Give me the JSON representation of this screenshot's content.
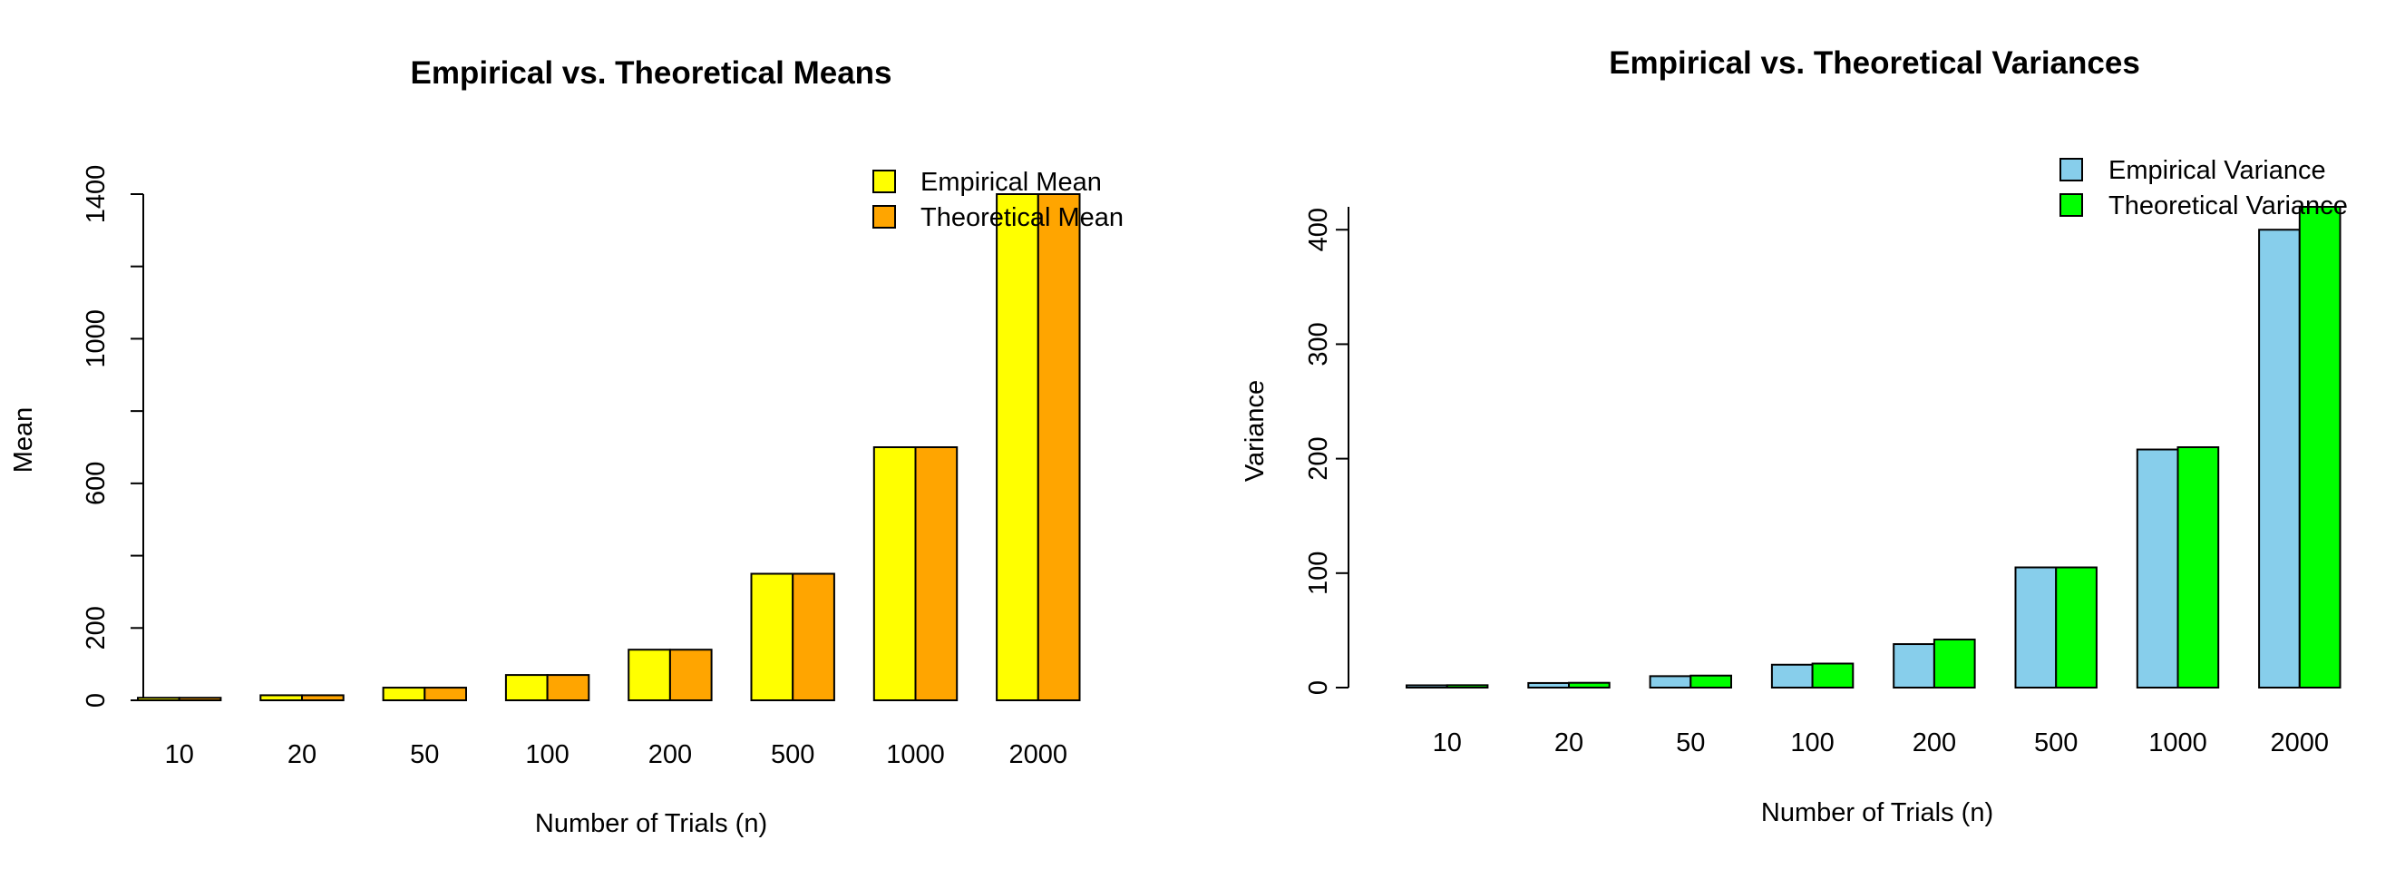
{
  "chart_data": [
    {
      "type": "bar",
      "title": "Empirical vs. Theoretical Means",
      "xlabel": "Number of Trials (n)",
      "ylabel": "Mean",
      "categories": [
        "10",
        "20",
        "50",
        "100",
        "200",
        "500",
        "1000",
        "2000"
      ],
      "series": [
        {
          "name": "Empirical Mean",
          "color": "#FFFF00",
          "values": [
            7,
            14,
            35,
            70,
            140,
            350,
            700,
            1400
          ]
        },
        {
          "name": "Theoretical Mean",
          "color": "#FFA500",
          "values": [
            7,
            14,
            35,
            70,
            140,
            350,
            700,
            1400
          ]
        }
      ],
      "ylim": [
        0,
        1400
      ],
      "yticks": [
        0,
        200,
        600,
        1000,
        1400
      ],
      "grid": false,
      "legend_position": "top-right"
    },
    {
      "type": "bar",
      "title": "Empirical vs. Theoretical Variances",
      "xlabel": "Number of Trials (n)",
      "ylabel": "Variance",
      "categories": [
        "10",
        "20",
        "50",
        "100",
        "200",
        "500",
        "1000",
        "2000"
      ],
      "series": [
        {
          "name": "Empirical Variance",
          "color": "#87CEEB",
          "values": [
            2,
            4,
            10,
            20,
            38,
            105,
            208,
            400
          ]
        },
        {
          "name": "Theoretical Variance",
          "color": "#00FF00",
          "values": [
            2.1,
            4.2,
            10.5,
            21,
            42,
            105,
            210,
            420
          ]
        }
      ],
      "ylim": [
        0,
        420
      ],
      "yticks": [
        0,
        100,
        200,
        300,
        400
      ],
      "grid": false,
      "legend_position": "top-right"
    }
  ]
}
